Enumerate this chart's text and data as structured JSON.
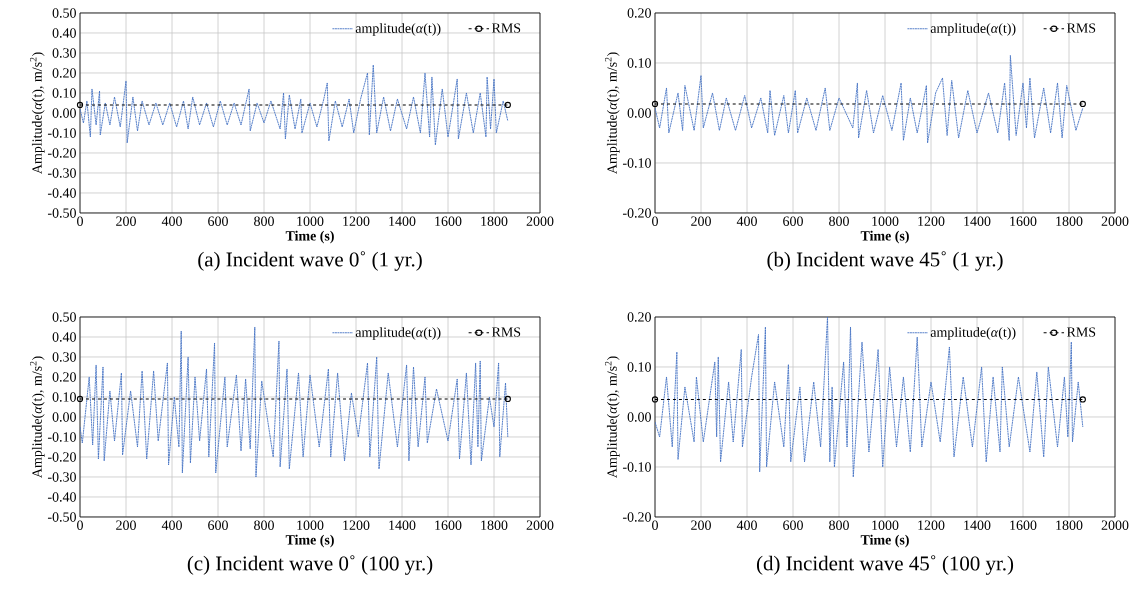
{
  "chart_data": [
    {
      "type": "line",
      "title": "(a) Incident wave 0˚ (1 yr.)",
      "xlabel": "Time (s)",
      "ylabel": "Amplitude(*α*(t), m/s$^{2}$)",
      "xlim": [
        0,
        2000
      ],
      "ylim": [
        -0.5,
        0.5
      ],
      "xticks": [
        0,
        200,
        400,
        600,
        800,
        1000,
        1200,
        1400,
        1600,
        1800,
        2000
      ],
      "yticks": [
        {
          "value": 0.5,
          "label": "0.50"
        },
        {
          "value": 0.4,
          "label": "0.40"
        },
        {
          "value": 0.3,
          "label": "0.30"
        },
        {
          "value": 0.2,
          "label": "0.20"
        },
        {
          "value": 0.1,
          "label": "0.10"
        },
        {
          "value": 0,
          "label": "0.00"
        },
        {
          "value": -0.1,
          "label": "-0.10"
        },
        {
          "value": -0.2,
          "label": "-0.20"
        },
        {
          "value": -0.3,
          "label": "-0.30"
        },
        {
          "value": -0.4,
          "label": "-0.40"
        },
        {
          "value": -0.5,
          "label": "-0.50"
        }
      ],
      "grid": true,
      "legend": "top right",
      "series": [
        {
          "name": "amplitude(*α*(t))",
          "color": "#4472c4",
          "line_style": "dashed",
          "marker": "none",
          "x": [
            0,
            15,
            30,
            45,
            52,
            70,
            85,
            88,
            110,
            130,
            150,
            175,
            200,
            205,
            230,
            250,
            270,
            300,
            330,
            360,
            390,
            420,
            450,
            470,
            490,
            520,
            550,
            580,
            610,
            640,
            670,
            700,
            735,
            740,
            770,
            800,
            830,
            870,
            885,
            893,
            910,
            935,
            960,
            965,
            1000,
            1030,
            1060,
            1075,
            1082,
            1110,
            1140,
            1170,
            1190,
            1220,
            1250,
            1258,
            1275,
            1290,
            1320,
            1350,
            1380,
            1420,
            1450,
            1480,
            1500,
            1520,
            1530,
            1545,
            1575,
            1600,
            1640,
            1645,
            1680,
            1710,
            1740,
            1765,
            1770,
            1785,
            1800,
            1810,
            1840,
            1860
          ],
          "values": [
            0.02,
            -0.05,
            0.06,
            -0.12,
            0.12,
            -0.06,
            0.11,
            -0.11,
            0.05,
            -0.06,
            0.08,
            -0.07,
            0.16,
            -0.15,
            0.08,
            -0.09,
            0.06,
            -0.06,
            0.05,
            -0.06,
            0.05,
            -0.07,
            0.06,
            -0.08,
            0.08,
            -0.06,
            0.05,
            -0.07,
            0.06,
            -0.06,
            0.05,
            -0.06,
            0.12,
            -0.09,
            0.05,
            -0.05,
            0.06,
            -0.08,
            0.1,
            -0.13,
            0.09,
            -0.08,
            0.07,
            -0.1,
            0.05,
            -0.07,
            0.07,
            0.15,
            -0.14,
            0.06,
            -0.07,
            0.07,
            -0.1,
            0.07,
            0.2,
            -0.11,
            0.24,
            -0.1,
            0.08,
            -0.09,
            0.07,
            -0.08,
            0.08,
            -0.1,
            0.2,
            -0.12,
            0.18,
            -0.16,
            0.12,
            -0.12,
            0.17,
            -0.13,
            0.1,
            -0.1,
            0.1,
            -0.12,
            0.18,
            -0.08,
            0.17,
            -0.1,
            0.06,
            -0.04
          ]
        },
        {
          "name": "RMS",
          "color": "#000000",
          "line_style": "dashed",
          "marker": "circle",
          "x": [
            0,
            1860
          ],
          "values": [
            0.04,
            0.04
          ]
        }
      ]
    },
    {
      "type": "line",
      "title": "(b) Incident wave 45˚ (1 yr.)",
      "xlabel": "Time (s)",
      "ylabel": "Amplitude(*α*(t), m/s$^{2}$)",
      "xlim": [
        0,
        2000
      ],
      "ylim": [
        -0.2,
        0.2
      ],
      "xticks": [
        0,
        200,
        400,
        600,
        800,
        1000,
        1200,
        1400,
        1600,
        1800,
        2000
      ],
      "yticks": [
        {
          "value": 0.2,
          "label": "0.20"
        },
        {
          "value": 0.1,
          "label": "0.10"
        },
        {
          "value": 0,
          "label": "0.00"
        },
        {
          "value": -0.1,
          "label": "-0.10"
        },
        {
          "value": -0.2,
          "label": "-0.20"
        }
      ],
      "grid": true,
      "legend": "top right",
      "series": [
        {
          "name": "amplitude(*α*(t))",
          "color": "#4472c4",
          "line_style": "dashed",
          "marker": "none",
          "x": [
            0,
            20,
            50,
            60,
            100,
            120,
            130,
            170,
            200,
            210,
            250,
            280,
            310,
            350,
            390,
            420,
            460,
            490,
            500,
            520,
            560,
            580,
            610,
            620,
            660,
            700,
            740,
            760,
            800,
            860,
            880,
            885,
            920,
            950,
            990,
            1030,
            1070,
            1080,
            1110,
            1140,
            1180,
            1185,
            1220,
            1250,
            1270,
            1290,
            1320,
            1360,
            1400,
            1450,
            1490,
            1520,
            1540,
            1545,
            1570,
            1600,
            1615,
            1630,
            1650,
            1690,
            1720,
            1750,
            1770,
            1790,
            1830,
            1860
          ],
          "values": [
            0.01,
            -0.03,
            0.05,
            -0.04,
            0.04,
            -0.035,
            0.055,
            -0.035,
            0.075,
            -0.03,
            0.04,
            -0.035,
            0.03,
            -0.035,
            0.035,
            -0.03,
            0.03,
            -0.04,
            0.045,
            -0.045,
            0.035,
            -0.04,
            0.045,
            -0.04,
            0.03,
            -0.035,
            0.05,
            -0.035,
            0.03,
            -0.03,
            0.06,
            -0.05,
            0.045,
            -0.04,
            0.035,
            -0.035,
            0.06,
            -0.055,
            0.03,
            -0.04,
            0.055,
            -0.06,
            0.04,
            0.07,
            -0.045,
            0.065,
            -0.05,
            0.045,
            -0.04,
            0.04,
            -0.04,
            0.06,
            -0.055,
            0.115,
            -0.045,
            0.06,
            -0.03,
            0.07,
            -0.05,
            0.05,
            -0.04,
            0.06,
            -0.05,
            0.055,
            -0.035,
            0.01
          ]
        },
        {
          "name": "RMS",
          "color": "#000000",
          "line_style": "dashed",
          "marker": "circle",
          "x": [
            0,
            1860
          ],
          "values": [
            0.018,
            0.018
          ]
        }
      ]
    },
    {
      "type": "line",
      "title": "(c) Incident wave 0˚ (100 yr.)",
      "xlabel": "Time (s)",
      "ylabel": "Amplitude(*α*(t), m/s$^{2}$)",
      "xlim": [
        0,
        2000
      ],
      "ylim": [
        -0.5,
        0.5
      ],
      "xticks": [
        0,
        200,
        400,
        600,
        800,
        1000,
        1200,
        1400,
        1600,
        1800,
        2000
      ],
      "yticks": [
        {
          "value": 0.5,
          "label": "0.50"
        },
        {
          "value": 0.4,
          "label": "0.40"
        },
        {
          "value": 0.3,
          "label": "0.30"
        },
        {
          "value": 0.2,
          "label": "0.20"
        },
        {
          "value": 0.1,
          "label": "0.10"
        },
        {
          "value": 0,
          "label": "0.00"
        },
        {
          "value": -0.1,
          "label": "-0.10"
        },
        {
          "value": -0.2,
          "label": "-0.20"
        },
        {
          "value": -0.3,
          "label": "-0.30"
        },
        {
          "value": -0.4,
          "label": "-0.40"
        },
        {
          "value": -0.5,
          "label": "-0.50"
        }
      ],
      "grid": true,
      "legend": "top right",
      "series": [
        {
          "name": "amplitude(*α*(t))",
          "color": "#4472c4",
          "line_style": "dashed",
          "marker": "none",
          "x": [
            0,
            10,
            40,
            55,
            70,
            80,
            100,
            105,
            130,
            150,
            180,
            185,
            220,
            250,
            270,
            290,
            320,
            340,
            380,
            385,
            410,
            430,
            440,
            445,
            470,
            480,
            500,
            520,
            550,
            560,
            585,
            590,
            630,
            640,
            680,
            700,
            720,
            740,
            760,
            765,
            790,
            840,
            865,
            870,
            900,
            910,
            950,
            970,
            1000,
            1040,
            1080,
            1090,
            1120,
            1150,
            1180,
            1210,
            1250,
            1260,
            1290,
            1300,
            1340,
            1380,
            1420,
            1430,
            1450,
            1470,
            1500,
            1510,
            1550,
            1600,
            1640,
            1650,
            1680,
            1700,
            1720,
            1730,
            1740,
            1745,
            1780,
            1800,
            1820,
            1825,
            1850,
            1860
          ],
          "values": [
            -0.05,
            -0.13,
            0.2,
            -0.14,
            0.26,
            -0.21,
            0.25,
            -0.22,
            0.13,
            -0.12,
            0.22,
            -0.19,
            0.13,
            -0.15,
            0.23,
            -0.21,
            0.23,
            -0.12,
            0.27,
            -0.24,
            0.1,
            -0.15,
            0.43,
            -0.28,
            0.3,
            -0.23,
            0.2,
            -0.12,
            0.24,
            -0.2,
            0.37,
            -0.28,
            0.2,
            -0.15,
            0.21,
            -0.17,
            0.19,
            -0.16,
            0.45,
            -0.3,
            0.18,
            -0.2,
            0.38,
            -0.25,
            0.24,
            -0.26,
            0.22,
            -0.2,
            0.21,
            -0.15,
            0.24,
            -0.2,
            0.22,
            -0.22,
            0.12,
            -0.1,
            0.27,
            -0.2,
            0.3,
            -0.26,
            0.22,
            -0.15,
            0.26,
            -0.22,
            0.25,
            -0.15,
            0.2,
            -0.13,
            0.14,
            -0.12,
            0.19,
            -0.21,
            0.22,
            -0.24,
            0.27,
            -0.15,
            0.28,
            -0.22,
            0.1,
            -0.05,
            0.27,
            -0.2,
            0.17,
            -0.1
          ]
        },
        {
          "name": "RMS",
          "color": "#000000",
          "line_style": "dashed",
          "marker": "circle",
          "x": [
            0,
            1860
          ],
          "values": [
            0.09,
            0.09
          ]
        }
      ]
    },
    {
      "type": "line",
      "title": "(d) Incident wave 45˚ (100 yr.)",
      "xlabel": "Time (s)",
      "ylabel": "Amplitude(*α*(t), m/s$^{2}$)",
      "xlim": [
        0,
        2000
      ],
      "ylim": [
        -0.2,
        0.2
      ],
      "xticks": [
        0,
        200,
        400,
        600,
        800,
        1000,
        1200,
        1400,
        1600,
        1800,
        2000
      ],
      "yticks": [
        {
          "value": 0.2,
          "label": "0.20"
        },
        {
          "value": 0.1,
          "label": "0.10"
        },
        {
          "value": 0,
          "label": "0.00"
        },
        {
          "value": -0.1,
          "label": "-0.10"
        },
        {
          "value": -0.2,
          "label": "-0.20"
        }
      ],
      "grid": true,
      "legend": "top right",
      "series": [
        {
          "name": "amplitude(*α*(t))",
          "color": "#4472c4",
          "line_style": "dashed",
          "marker": "none",
          "x": [
            0,
            20,
            50,
            75,
            95,
            100,
            130,
            170,
            180,
            210,
            260,
            268,
            275,
            285,
            320,
            340,
            375,
            380,
            420,
            450,
            455,
            480,
            485,
            520,
            560,
            580,
            590,
            630,
            650,
            690,
            720,
            750,
            760,
            770,
            780,
            820,
            835,
            850,
            862,
            900,
            930,
            970,
            990,
            1020,
            1050,
            1080,
            1110,
            1140,
            1160,
            1200,
            1240,
            1280,
            1300,
            1340,
            1380,
            1420,
            1440,
            1470,
            1500,
            1510,
            1540,
            1580,
            1630,
            1660,
            1690,
            1710,
            1750,
            1780,
            1795,
            1810,
            1815,
            1840,
            1860
          ],
          "values": [
            -0.01,
            -0.04,
            0.08,
            -0.06,
            0.13,
            -0.085,
            0.06,
            -0.05,
            0.08,
            -0.05,
            0.11,
            -0.04,
            0.12,
            -0.09,
            0.07,
            -0.05,
            0.135,
            -0.06,
            0.08,
            0.165,
            -0.11,
            0.18,
            -0.1,
            0.07,
            -0.06,
            0.105,
            -0.09,
            0.06,
            -0.09,
            0.07,
            -0.06,
            0.2,
            -0.09,
            0.06,
            -0.1,
            0.11,
            -0.06,
            0.18,
            -0.12,
            0.15,
            -0.07,
            0.135,
            -0.1,
            0.1,
            -0.06,
            0.08,
            -0.07,
            0.16,
            -0.06,
            0.07,
            -0.05,
            0.14,
            -0.08,
            0.08,
            -0.06,
            0.1,
            -0.09,
            0.08,
            -0.07,
            0.1,
            -0.06,
            0.08,
            -0.07,
            0.09,
            -0.08,
            0.1,
            -0.06,
            0.08,
            -0.04,
            0.15,
            -0.05,
            0.07,
            -0.02
          ]
        },
        {
          "name": "RMS",
          "color": "#000000",
          "line_style": "dashed",
          "marker": "circle",
          "x": [
            0,
            1860
          ],
          "values": [
            0.035,
            0.035
          ]
        }
      ]
    }
  ]
}
